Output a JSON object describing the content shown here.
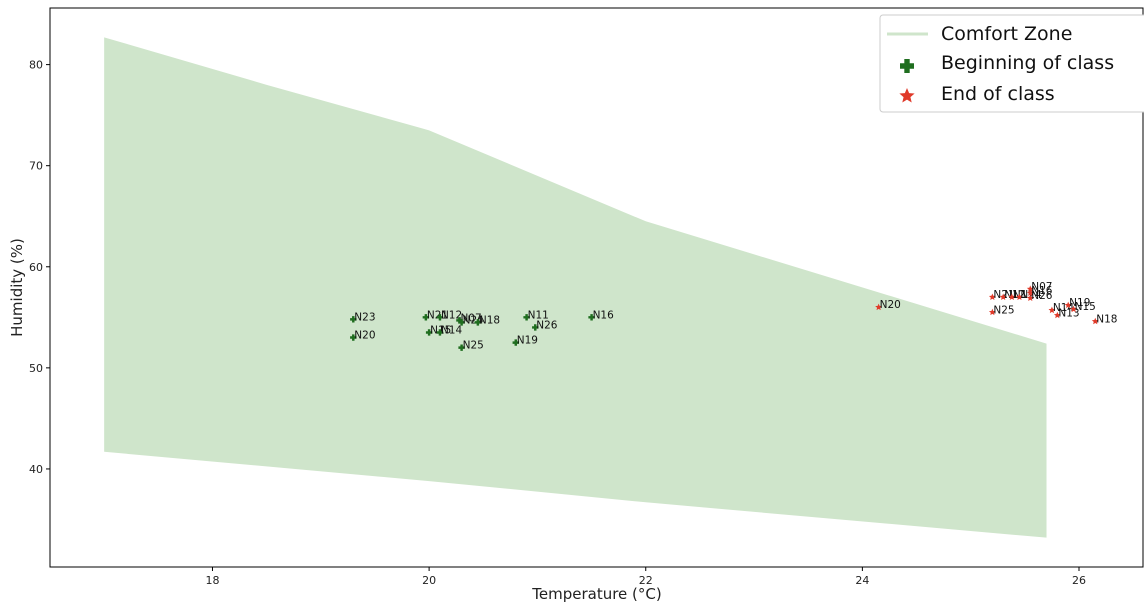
{
  "chart_data": {
    "type": "scatter",
    "title": "",
    "xlabel": "Temperature (°C)",
    "ylabel": "Humidity (%)",
    "xlim": [
      16.5,
      26.6
    ],
    "ylim": [
      30.3,
      85.6
    ],
    "x_ticks": [
      18,
      20,
      22,
      24,
      26
    ],
    "y_ticks": [
      40,
      50,
      60,
      70,
      80
    ],
    "grid": false,
    "legend_position": "top-right",
    "comfort_zone": {
      "name": "Comfort Zone",
      "color": "#cfe5cb",
      "upper": [
        [
          17.0,
          82.7
        ],
        [
          18.5,
          78.0
        ],
        [
          20.0,
          73.5
        ],
        [
          22.0,
          64.5
        ],
        [
          25.7,
          52.4
        ]
      ],
      "lower": [
        [
          17.0,
          41.7
        ],
        [
          20.0,
          38.8
        ],
        [
          22.0,
          36.7
        ],
        [
          25.7,
          33.2
        ]
      ]
    },
    "series": [
      {
        "name": "Beginning of class",
        "marker": "plus",
        "color": "#1f6e1f",
        "points": [
          {
            "label": "N23",
            "x": 19.3,
            "y": 54.8
          },
          {
            "label": "N20",
            "x": 19.3,
            "y": 53.0
          },
          {
            "label": "N21",
            "x": 19.97,
            "y": 55.0
          },
          {
            "label": "N12",
            "x": 20.1,
            "y": 55.0
          },
          {
            "label": "N07",
            "x": 20.28,
            "y": 54.7
          },
          {
            "label": "N24",
            "x": 20.3,
            "y": 54.5
          },
          {
            "label": "N18",
            "x": 20.45,
            "y": 54.5
          },
          {
            "label": "N15",
            "x": 20.0,
            "y": 53.5
          },
          {
            "label": "N14",
            "x": 20.1,
            "y": 53.5
          },
          {
            "label": "N25",
            "x": 20.3,
            "y": 52.0
          },
          {
            "label": "N11",
            "x": 20.9,
            "y": 55.0
          },
          {
            "label": "N26",
            "x": 20.98,
            "y": 54.0
          },
          {
            "label": "N19",
            "x": 20.8,
            "y": 52.5
          },
          {
            "label": "N16",
            "x": 21.5,
            "y": 55.0
          }
        ]
      },
      {
        "name": "End of class",
        "marker": "star",
        "color": "#e03a2a",
        "points": [
          {
            "label": "N20",
            "x": 24.15,
            "y": 56.0
          },
          {
            "label": "N21",
            "x": 25.2,
            "y": 57.0
          },
          {
            "label": "N12",
            "x": 25.3,
            "y": 57.0
          },
          {
            "label": "N11",
            "x": 25.38,
            "y": 57.0
          },
          {
            "label": "N24",
            "x": 25.45,
            "y": 57.0
          },
          {
            "label": "N07",
            "x": 25.55,
            "y": 57.8
          },
          {
            "label": "N16",
            "x": 25.55,
            "y": 57.4
          },
          {
            "label": "N26",
            "x": 25.55,
            "y": 56.9
          },
          {
            "label": "N25",
            "x": 25.2,
            "y": 55.5
          },
          {
            "label": "N14",
            "x": 25.75,
            "y": 55.7
          },
          {
            "label": "N13",
            "x": 25.8,
            "y": 55.2
          },
          {
            "label": "N19",
            "x": 25.9,
            "y": 56.2
          },
          {
            "label": "N15",
            "x": 25.95,
            "y": 55.8
          },
          {
            "label": "N18",
            "x": 26.15,
            "y": 54.6
          }
        ]
      }
    ]
  }
}
